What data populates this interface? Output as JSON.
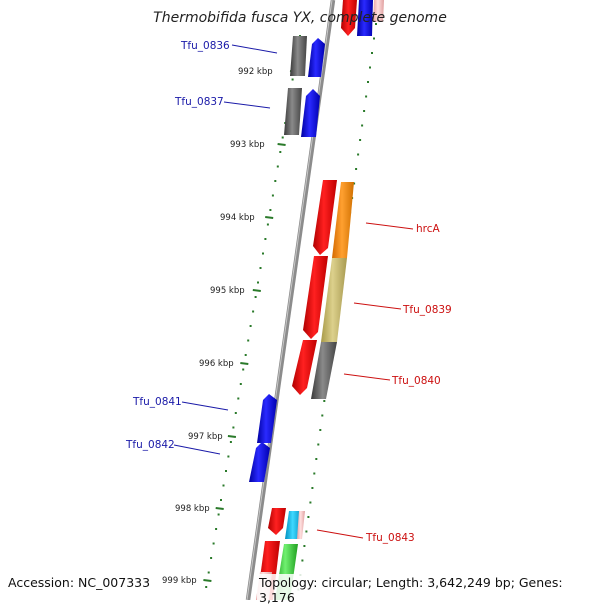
{
  "title": "Thermobifida fusca YX, complete genome",
  "footer": {
    "accession": "Accession: NC_007333",
    "topology": "Topology: circular; Length: 3,642,249 bp; Genes: 3,176"
  },
  "colors": {
    "backbone": "#8c8c8c",
    "tick": "#2a7a2a",
    "label_blue": "#1a1aa8",
    "label_red": "#cc1010"
  },
  "ticks": [
    {
      "label": "992 kbp"
    },
    {
      "label": "993 kbp"
    },
    {
      "label": "994 kbp"
    },
    {
      "label": "995 kbp"
    },
    {
      "label": "996 kbp"
    },
    {
      "label": "997 kbp"
    },
    {
      "label": "998 kbp"
    },
    {
      "label": "999 kbp"
    }
  ],
  "gene_labels": [
    {
      "text": "Tfu_0836",
      "strand": "left"
    },
    {
      "text": "Tfu_0837",
      "strand": "left"
    },
    {
      "text": "hrcA",
      "strand": "right"
    },
    {
      "text": "Tfu_0839",
      "strand": "right"
    },
    {
      "text": "Tfu_0840",
      "strand": "right"
    },
    {
      "text": "Tfu_0841",
      "strand": "left"
    },
    {
      "text": "Tfu_0842",
      "strand": "left"
    },
    {
      "text": "Tfu_0843",
      "strand": "right"
    }
  ]
}
